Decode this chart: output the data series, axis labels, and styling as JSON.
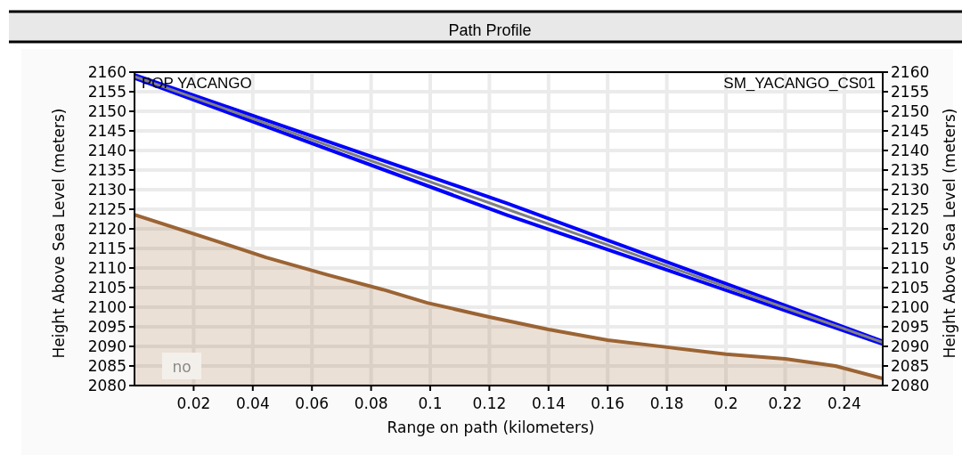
{
  "chart_data": {
    "type": "line",
    "title": "Path Profile",
    "xlabel": "Range on path (kilometers)",
    "ylabel": "Height Above Sea Level (meters)",
    "y2label": "Height Above Sea Level (meters)",
    "xlim": [
      0,
      0.253
    ],
    "xticks": [
      0.02,
      0.04,
      0.06,
      0.08,
      0.1,
      0.12,
      0.14,
      0.16,
      0.18,
      0.2,
      0.22,
      0.24
    ],
    "ylim": [
      2080,
      2160
    ],
    "yticks": [
      2080,
      2085,
      2090,
      2095,
      2100,
      2105,
      2110,
      2115,
      2120,
      2125,
      2130,
      2135,
      2140,
      2145,
      2150,
      2155,
      2160
    ],
    "y2lim": [
      2080,
      2160
    ],
    "y2ticks": [
      2080,
      2085,
      2090,
      2095,
      2100,
      2105,
      2110,
      2115,
      2120,
      2125,
      2130,
      2135,
      2140,
      2145,
      2150,
      2155,
      2160
    ],
    "grid": true,
    "marker": "none",
    "line_style": "solid",
    "series": [
      {
        "type": "area",
        "color": "#9b6434",
        "x": [
          0,
          0.028,
          0.0445,
          0.0655,
          0.084,
          0.099,
          0.12,
          0.14,
          0.16,
          0.18,
          0.2,
          0.22,
          0.237,
          0.253
        ],
        "values": [
          2123.6,
          2116.8,
          2112.7,
          2108.2,
          2104.5,
          2101.1,
          2097.5,
          2094.3,
          2091.6,
          2089.8,
          2088,
          2086.8,
          2085,
          2081.8
        ]
      },
      {
        "color": "#0000ff",
        "x": [
          0,
          0.126,
          0.253
        ],
        "values": [
          2159.3,
          2126.5,
          2091.3
        ]
      },
      {
        "color": "#0000ff",
        "x": [
          0,
          0.126,
          0.253
        ],
        "values": [
          2158.5,
          2123.5,
          2090.6
        ]
      },
      {
        "color": "#808080",
        "x": [
          0,
          0.126,
          0.253
        ],
        "values": [
          2158.9,
          2125,
          2091
        ]
      }
    ],
    "annotations": [
      "POP YACANGO",
      "SM_YACANGO_CS01",
      "no"
    ]
  }
}
